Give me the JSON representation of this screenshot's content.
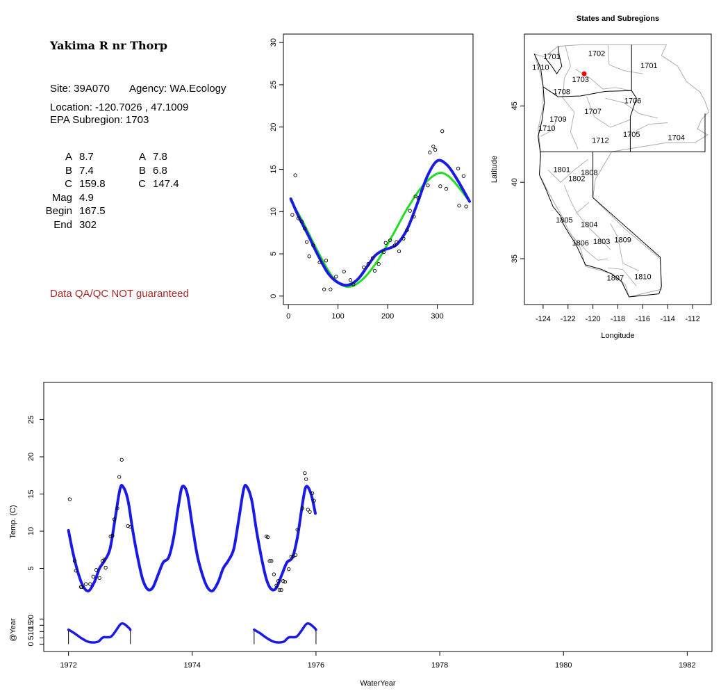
{
  "site": {
    "title": "Yakima R nr Thorp",
    "site_line": "Site: 39A070",
    "agency_line": "Agency: WA.Ecology",
    "location_line": "Location: -120.7026 , 47.1009",
    "subregion_line": "EPA Subregion: 1703",
    "qa_note": "Data QA/QC NOT guaranteed"
  },
  "coefficients": {
    "left": [
      {
        "label": "A",
        "value": "8.7"
      },
      {
        "label": "B",
        "value": "7.4"
      },
      {
        "label": "C",
        "value": "159.8"
      },
      {
        "label": "Mag",
        "value": "4.9"
      },
      {
        "label": "Begin",
        "value": "167.5"
      },
      {
        "label": "End",
        "value": "302"
      }
    ],
    "right": [
      {
        "label": "A",
        "value": "7.8"
      },
      {
        "label": "B",
        "value": "6.8"
      },
      {
        "label": "C",
        "value": "147.4"
      }
    ]
  },
  "colors": {
    "fit_blue": "#1a1ae6",
    "fit_green": "#22dd22",
    "site_marker": "#ff0000",
    "map_lines": "#aaaaaa",
    "qa_text": "#a52a2a"
  },
  "chart_data": [
    {
      "type": "scatter",
      "title": "",
      "xlabel": "",
      "ylabel": "",
      "xlim": [
        -10,
        372
      ],
      "ylim": [
        -1,
        31
      ],
      "x_ticks": [
        "0",
        "100",
        "200",
        "300"
      ],
      "y_ticks": [
        "0",
        "5",
        "10",
        "15",
        "20",
        "25",
        "30"
      ],
      "points": [
        [
          8,
          9.6
        ],
        [
          14,
          14.3
        ],
        [
          20,
          9.2
        ],
        [
          27,
          8.8
        ],
        [
          33,
          8.0
        ],
        [
          37,
          6.4
        ],
        [
          42,
          4.7
        ],
        [
          50,
          6.0
        ],
        [
          63,
          4.0
        ],
        [
          72,
          0.8
        ],
        [
          76,
          4.2
        ],
        [
          85,
          0.8
        ],
        [
          96,
          2.3
        ],
        [
          112,
          2.9
        ],
        [
          125,
          1.9
        ],
        [
          131,
          1.4
        ],
        [
          152,
          3.4
        ],
        [
          161,
          3.8
        ],
        [
          170,
          4.5
        ],
        [
          174,
          3.0
        ],
        [
          182,
          3.8
        ],
        [
          192,
          5.2
        ],
        [
          196,
          6.3
        ],
        [
          205,
          6.6
        ],
        [
          214,
          6.0
        ],
        [
          218,
          6.4
        ],
        [
          223,
          5.3
        ],
        [
          232,
          6.8
        ],
        [
          239,
          7.8
        ],
        [
          245,
          10.1
        ],
        [
          253,
          9.4
        ],
        [
          256,
          11.8
        ],
        [
          262,
          11.6
        ],
        [
          281,
          13.1
        ],
        [
          285,
          17.0
        ],
        [
          292,
          17.7
        ],
        [
          296,
          17.3
        ],
        [
          306,
          13.0
        ],
        [
          310,
          19.5
        ],
        [
          318,
          12.7
        ],
        [
          342,
          15.1
        ],
        [
          344,
          10.7
        ],
        [
          353,
          14.2
        ],
        [
          358,
          10.6
        ]
      ],
      "series": [
        {
          "name": "",
          "color": "#22dd22",
          "curve": [
            [
              5,
              11.3
            ],
            [
              30,
              8.7
            ],
            [
              60,
              5.2
            ],
            [
              90,
              2.2
            ],
            [
              120,
              1.1
            ],
            [
              150,
              2.0
            ],
            [
              180,
              4.2
            ],
            [
              210,
              7.2
            ],
            [
              240,
              10.4
            ],
            [
              270,
              13.0
            ],
            [
              300,
              14.5
            ],
            [
              320,
              14.3
            ],
            [
              340,
              13.1
            ],
            [
              365,
              11.2
            ]
          ]
        },
        {
          "name": "",
          "color": "#1a1ae6",
          "curve": [
            [
              5,
              11.5
            ],
            [
              20,
              9.5
            ],
            [
              40,
              7.2
            ],
            [
              60,
              4.8
            ],
            [
              80,
              2.7
            ],
            [
              100,
              1.6
            ],
            [
              120,
              1.3
            ],
            [
              140,
              2.0
            ],
            [
              160,
              3.6
            ],
            [
              175,
              4.8
            ],
            [
              190,
              5.4
            ],
            [
              205,
              5.7
            ],
            [
              220,
              6.2
            ],
            [
              240,
              8.0
            ],
            [
              260,
              11.0
            ],
            [
              280,
              14.2
            ],
            [
              300,
              16.0
            ],
            [
              320,
              15.5
            ],
            [
              340,
              13.8
            ],
            [
              365,
              11.2
            ]
          ]
        }
      ]
    },
    {
      "type": "map",
      "title": "States and Subregions",
      "xlabel": "Longitude",
      "ylabel": "Latitude",
      "xlim": [
        -125.5,
        -110.5
      ],
      "ylim": [
        32,
        49.7
      ],
      "x_ticks": [
        "-124",
        "-122",
        "-120",
        "-118",
        "-116",
        "-114",
        "-112"
      ],
      "y_ticks": [
        "35",
        "40",
        "45"
      ],
      "site": {
        "lon": -120.7026,
        "lat": 47.1009
      },
      "regions": [
        {
          "label": "1701",
          "lon": -123.3,
          "lat": 48.2
        },
        {
          "label": "1702",
          "lon": -119.7,
          "lat": 48.4
        },
        {
          "label": "1701",
          "lon": -115.5,
          "lat": 47.6
        },
        {
          "label": "1710",
          "lon": -124.2,
          "lat": 47.5
        },
        {
          "label": "1703",
          "lon": -121.0,
          "lat": 46.7
        },
        {
          "label": "1708",
          "lon": -122.5,
          "lat": 45.9
        },
        {
          "label": "1706",
          "lon": -116.8,
          "lat": 45.3
        },
        {
          "label": "1707",
          "lon": -120.0,
          "lat": 44.6
        },
        {
          "label": "1709",
          "lon": -122.8,
          "lat": 44.1
        },
        {
          "label": "1710",
          "lon": -123.7,
          "lat": 43.5
        },
        {
          "label": "1705",
          "lon": -116.9,
          "lat": 43.1
        },
        {
          "label": "1704",
          "lon": -113.3,
          "lat": 42.9
        },
        {
          "label": "1712",
          "lon": -119.4,
          "lat": 42.7
        },
        {
          "label": "1801",
          "lon": -122.5,
          "lat": 40.8
        },
        {
          "label": "1808",
          "lon": -120.3,
          "lat": 40.6
        },
        {
          "label": "1802",
          "lon": -121.3,
          "lat": 40.2
        },
        {
          "label": "1805",
          "lon": -122.3,
          "lat": 37.5
        },
        {
          "label": "1804",
          "lon": -120.3,
          "lat": 37.2
        },
        {
          "label": "1806",
          "lon": -121.0,
          "lat": 36.0
        },
        {
          "label": "1803",
          "lon": -119.3,
          "lat": 36.1
        },
        {
          "label": "1809",
          "lon": -117.6,
          "lat": 36.2
        },
        {
          "label": "1807",
          "lon": -118.2,
          "lat": 33.7
        },
        {
          "label": "1810",
          "lon": -116.0,
          "lat": 33.8
        }
      ]
    },
    {
      "type": "line",
      "title": "",
      "xlabel": "WaterYear",
      "ylabel": "Temp. (C)",
      "xlim": [
        1971.6,
        1982.4
      ],
      "ylim": [
        0,
        30
      ],
      "x_ticks": [
        "1972",
        "1974",
        "1976",
        "1978",
        "1980",
        "1982"
      ],
      "y_ticks": [
        "5",
        "10",
        "15",
        "20",
        "25"
      ],
      "blue_line_color": "#1a1ae6",
      "curve": [
        [
          1972.0,
          10.1
        ],
        [
          1972.08,
          6.8
        ],
        [
          1972.17,
          4.0
        ],
        [
          1972.25,
          2.4
        ],
        [
          1972.33,
          2.0
        ],
        [
          1972.42,
          3.2
        ],
        [
          1972.5,
          5.0
        ],
        [
          1972.58,
          6.0
        ],
        [
          1972.67,
          7.6
        ],
        [
          1972.75,
          11.5
        ],
        [
          1972.83,
          15.6
        ],
        [
          1972.88,
          16.0
        ],
        [
          1972.96,
          14.2
        ],
        [
          1973.04,
          10.0
        ],
        [
          1973.12,
          6.4
        ],
        [
          1973.2,
          3.5
        ],
        [
          1973.28,
          2.2
        ],
        [
          1973.36,
          2.4
        ],
        [
          1973.45,
          4.2
        ],
        [
          1973.53,
          5.8
        ],
        [
          1973.62,
          6.5
        ],
        [
          1973.7,
          9.2
        ],
        [
          1973.78,
          13.6
        ],
        [
          1973.84,
          16.0
        ],
        [
          1973.92,
          15.0
        ],
        [
          1974.0,
          10.8
        ],
        [
          1974.08,
          6.8
        ],
        [
          1974.17,
          4.0
        ],
        [
          1974.25,
          2.4
        ],
        [
          1974.33,
          2.0
        ],
        [
          1974.42,
          3.2
        ],
        [
          1974.5,
          5.0
        ],
        [
          1974.58,
          6.0
        ],
        [
          1974.67,
          7.6
        ],
        [
          1974.75,
          11.5
        ],
        [
          1974.83,
          15.6
        ],
        [
          1974.88,
          16.0
        ],
        [
          1974.96,
          14.2
        ],
        [
          1975.04,
          10.0
        ],
        [
          1975.12,
          6.4
        ],
        [
          1975.2,
          3.5
        ],
        [
          1975.28,
          2.2
        ],
        [
          1975.36,
          2.4
        ],
        [
          1975.45,
          4.2
        ],
        [
          1975.53,
          5.8
        ],
        [
          1975.62,
          6.5
        ],
        [
          1975.7,
          9.2
        ],
        [
          1975.78,
          13.6
        ],
        [
          1975.84,
          16.0
        ],
        [
          1975.92,
          15.0
        ],
        [
          1975.99,
          12.4
        ]
      ],
      "points": [
        [
          1972.02,
          14.3
        ],
        [
          1972.1,
          6.0
        ],
        [
          1972.12,
          4.7
        ],
        [
          1972.2,
          2.5
        ],
        [
          1972.22,
          2.5
        ],
        [
          1972.28,
          2.9
        ],
        [
          1972.35,
          2.9
        ],
        [
          1972.4,
          3.9
        ],
        [
          1972.45,
          4.8
        ],
        [
          1972.5,
          3.7
        ],
        [
          1972.55,
          6.0
        ],
        [
          1972.58,
          6.2
        ],
        [
          1972.6,
          5.1
        ],
        [
          1972.68,
          9.3
        ],
        [
          1972.71,
          9.4
        ],
        [
          1972.74,
          11.6
        ],
        [
          1972.79,
          13.1
        ],
        [
          1972.82,
          17.3
        ],
        [
          1972.86,
          19.6
        ],
        [
          1972.96,
          10.7
        ],
        [
          1973.0,
          10.6
        ],
        [
          1975.2,
          9.3
        ],
        [
          1975.22,
          9.2
        ],
        [
          1975.25,
          6.0
        ],
        [
          1975.28,
          6.0
        ],
        [
          1975.32,
          4.2
        ],
        [
          1975.36,
          2.7
        ],
        [
          1975.39,
          3.3
        ],
        [
          1975.41,
          2.1
        ],
        [
          1975.44,
          2.1
        ],
        [
          1975.47,
          3.3
        ],
        [
          1975.5,
          3.2
        ],
        [
          1975.56,
          4.9
        ],
        [
          1975.6,
          6.6
        ],
        [
          1975.63,
          6.6
        ],
        [
          1975.67,
          6.8
        ],
        [
          1975.7,
          10.2
        ],
        [
          1975.78,
          13.1
        ],
        [
          1975.82,
          17.8
        ],
        [
          1975.84,
          17.0
        ],
        [
          1975.87,
          12.9
        ],
        [
          1975.9,
          12.6
        ],
        [
          1975.94,
          15.1
        ],
        [
          1975.97,
          14.1
        ]
      ]
    },
    {
      "type": "line",
      "title": "",
      "xlabel": "",
      "ylabel": "@Year",
      "xlim": [
        1971.6,
        1982.4
      ],
      "ylim": [
        -2,
        29
      ],
      "y_ticks": [
        "0",
        "5",
        "10",
        "15",
        "20"
      ],
      "segments": [
        {
          "x_range": [
            1972,
            1973
          ],
          "curve": [
            [
              1972.0,
              11.5
            ],
            [
              1972.1,
              8.5
            ],
            [
              1972.2,
              5.0
            ],
            [
              1972.3,
              2.2
            ],
            [
              1972.38,
              1.3
            ],
            [
              1972.48,
              2.0
            ],
            [
              1972.56,
              5.3
            ],
            [
              1972.68,
              5.8
            ],
            [
              1972.76,
              10.3
            ],
            [
              1972.84,
              15.8
            ],
            [
              1972.9,
              16.0
            ],
            [
              1972.98,
              12.7
            ],
            [
              1973.0,
              11.4
            ]
          ]
        },
        {
          "x_range": [
            1975,
            1976
          ],
          "curve": [
            [
              1975.0,
              11.5
            ],
            [
              1975.1,
              8.5
            ],
            [
              1975.2,
              5.0
            ],
            [
              1975.3,
              2.2
            ],
            [
              1975.38,
              1.3
            ],
            [
              1975.48,
              2.0
            ],
            [
              1975.56,
              5.3
            ],
            [
              1975.68,
              5.8
            ],
            [
              1975.76,
              10.3
            ],
            [
              1975.84,
              15.8
            ],
            [
              1975.9,
              16.0
            ],
            [
              1975.98,
              12.7
            ],
            [
              1976.0,
              11.4
            ]
          ]
        }
      ]
    }
  ]
}
